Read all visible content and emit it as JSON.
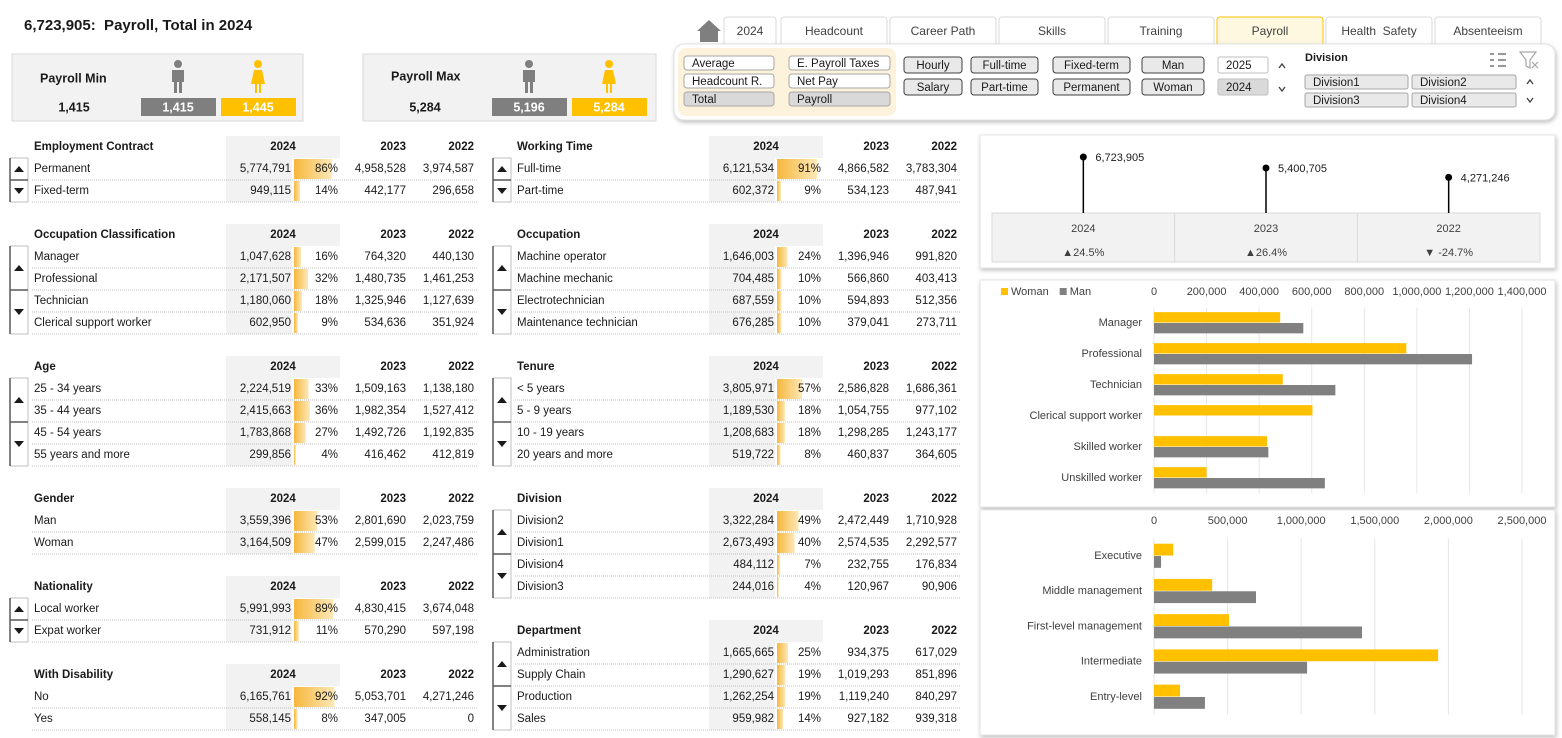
{
  "header": {
    "title": "6,723,905:  Payroll, Total in 2024"
  },
  "tabs": [
    "2024",
    "Headcount",
    "Career Path",
    "Skills",
    "Training",
    "Payroll",
    "Health  Safety",
    "Absenteeism"
  ],
  "active_tab": 5,
  "kpis": [
    {
      "title": "Payroll Min",
      "total": "1,415",
      "man": "1,415",
      "woman": "1,445"
    },
    {
      "title": "Payroll Max",
      "total": "5,284",
      "man": "5,196",
      "woman": "5,284"
    }
  ],
  "filters": {
    "measures": [
      {
        "label": "Average",
        "selected": false
      },
      {
        "label": "E. Payroll Taxes",
        "selected": false
      },
      {
        "label": "Headcount R.",
        "selected": false
      },
      {
        "label": "Net Pay",
        "selected": false
      },
      {
        "label": "Total",
        "selected": true
      },
      {
        "label": "Payroll",
        "selected": true
      }
    ],
    "buttons": [
      "Hourly",
      "Salary",
      "Full-time",
      "Part-time",
      "Fixed-term",
      "Permanent",
      "Man",
      "Woman"
    ],
    "years": [
      {
        "label": "2025",
        "selected": false
      },
      {
        "label": "2024",
        "selected": true
      }
    ],
    "division_title": "Division",
    "divisions": [
      "Division1",
      "Division2",
      "Division3",
      "Division4"
    ]
  },
  "left_tables": [
    {
      "title": "Employment Contract",
      "columns": [
        "2024",
        "2023",
        "2022"
      ],
      "scroll": true,
      "rows": [
        [
          "Permanent",
          "5,774,791",
          86,
          "86%",
          "4,958,528",
          "3,974,587"
        ],
        [
          "Fixed-term",
          "949,115",
          14,
          "14%",
          "442,177",
          "296,658"
        ]
      ]
    },
    {
      "title": "Occupation Classification",
      "columns": [
        "2024",
        "2023",
        "2022"
      ],
      "scroll": true,
      "rows": [
        [
          "Manager",
          "1,047,628",
          16,
          "16%",
          "764,320",
          "440,130"
        ],
        [
          "Professional",
          "2,171,507",
          32,
          "32%",
          "1,480,735",
          "1,461,253"
        ],
        [
          "Technician",
          "1,180,060",
          18,
          "18%",
          "1,325,946",
          "1,127,639"
        ],
        [
          "Clerical support worker",
          "602,950",
          9,
          "9%",
          "534,636",
          "351,924"
        ]
      ]
    },
    {
      "title": "Age",
      "columns": [
        "2024",
        "2023",
        "2022"
      ],
      "scroll": true,
      "rows": [
        [
          "25 - 34 years",
          "2,224,519",
          33,
          "33%",
          "1,509,163",
          "1,138,180"
        ],
        [
          "35 - 44 years",
          "2,415,663",
          36,
          "36%",
          "1,982,354",
          "1,527,412"
        ],
        [
          "45 - 54 years",
          "1,783,868",
          27,
          "27%",
          "1,492,726",
          "1,192,835"
        ],
        [
          "55 years and more",
          "299,856",
          4,
          "4%",
          "416,462",
          "412,819"
        ]
      ]
    },
    {
      "title": "Gender",
      "columns": [
        "2024",
        "2023",
        "2022"
      ],
      "scroll": false,
      "rows": [
        [
          "Man",
          "3,559,396",
          53,
          "53%",
          "2,801,690",
          "2,023,759"
        ],
        [
          "Woman",
          "3,164,509",
          47,
          "47%",
          "2,599,015",
          "2,247,486"
        ]
      ]
    },
    {
      "title": "Nationality",
      "columns": [
        "2024",
        "2023",
        "2022"
      ],
      "scroll": true,
      "rows": [
        [
          "Local worker",
          "5,991,993",
          89,
          "89%",
          "4,830,415",
          "3,674,048"
        ],
        [
          "Expat worker",
          "731,912",
          11,
          "11%",
          "570,290",
          "597,198"
        ]
      ]
    },
    {
      "title": "With Disability",
      "columns": [
        "2024",
        "2023",
        "2022"
      ],
      "scroll": false,
      "rows": [
        [
          "No",
          "6,165,761",
          92,
          "92%",
          "5,053,701",
          "4,271,246"
        ],
        [
          "Yes",
          "558,145",
          8,
          "8%",
          "347,005",
          "0"
        ]
      ]
    }
  ],
  "right_tables": [
    {
      "title": "Working Time",
      "columns": [
        "2024",
        "2023",
        "2022"
      ],
      "scroll": true,
      "rows": [
        [
          "Full-time",
          "6,121,534",
          91,
          "91%",
          "4,866,582",
          "3,783,304"
        ],
        [
          "Part-time",
          "602,372",
          9,
          "9%",
          "534,123",
          "487,941"
        ]
      ]
    },
    {
      "title": "Occupation",
      "columns": [
        "2024",
        "2023",
        "2022"
      ],
      "scroll": true,
      "rows": [
        [
          "Machine operator",
          "1,646,003",
          24,
          "24%",
          "1,396,946",
          "991,820"
        ],
        [
          "Machine mechanic",
          "704,485",
          10,
          "10%",
          "566,860",
          "403,413"
        ],
        [
          "Electrotechnician",
          "687,559",
          10,
          "10%",
          "594,893",
          "512,356"
        ],
        [
          "Maintenance technician",
          "676,285",
          10,
          "10%",
          "379,041",
          "273,711"
        ]
      ]
    },
    {
      "title": "Tenure",
      "columns": [
        "2024",
        "2023",
        "2022"
      ],
      "scroll": true,
      "rows": [
        [
          "< 5 years",
          "3,805,971",
          57,
          "57%",
          "2,586,828",
          "1,686,361"
        ],
        [
          "5 - 9 years",
          "1,189,530",
          18,
          "18%",
          "1,054,755",
          "977,102"
        ],
        [
          "10 - 19 years",
          "1,208,683",
          18,
          "18%",
          "1,298,285",
          "1,243,177"
        ],
        [
          "20 years and more",
          "519,722",
          8,
          "8%",
          "460,837",
          "364,605"
        ]
      ]
    },
    {
      "title": "Division",
      "columns": [
        "2024",
        "2023",
        "2022"
      ],
      "scroll": true,
      "rows": [
        [
          "Division2",
          "3,322,284",
          49,
          "49%",
          "2,472,449",
          "1,710,928"
        ],
        [
          "Division1",
          "2,673,493",
          40,
          "40%",
          "2,574,535",
          "2,292,577"
        ],
        [
          "Division4",
          "484,112",
          7,
          "7%",
          "232,755",
          "176,834"
        ],
        [
          "Division3",
          "244,016",
          4,
          "4%",
          "120,967",
          "90,906"
        ]
      ]
    },
    {
      "title": "Department",
      "columns": [
        "2024",
        "2023",
        "2022"
      ],
      "scroll": true,
      "rows": [
        [
          "Administration",
          "1,665,665",
          25,
          "25%",
          "934,375",
          "617,029"
        ],
        [
          "Supply Chain",
          "1,290,627",
          19,
          "19%",
          "1,019,293",
          "851,896"
        ],
        [
          "Production",
          "1,262,254",
          19,
          "19%",
          "1,119,240",
          "840,297"
        ],
        [
          "Sales",
          "959,982",
          14,
          "14%",
          "927,182",
          "939,318"
        ]
      ]
    }
  ],
  "chart_data": [
    {
      "type": "lollipop",
      "categories": [
        "2024",
        "2023",
        "2022"
      ],
      "values": [
        6723905,
        5400705,
        4271246
      ],
      "value_labels": [
        "6,723,905",
        "5,400,705",
        "4,271,246"
      ],
      "changes": [
        "▲24.5%",
        "▲26.4%",
        "▼ -24.7%"
      ],
      "ylim": [
        0,
        7500000
      ],
      "color": "#000000"
    },
    {
      "type": "barh",
      "categories": [
        "Manager",
        "Professional",
        "Technician",
        "Clerical support worker",
        "Skilled worker",
        "Unskilled worker"
      ],
      "series": [
        {
          "name": "Woman",
          "color": "#ffc000",
          "values": [
            480000,
            960000,
            490000,
            603000,
            430000,
            200000
          ]
        },
        {
          "name": "Man",
          "color": "#808080",
          "values": [
            568000,
            1210000,
            690000,
            0,
            435000,
            650000
          ]
        }
      ],
      "xlim": [
        0,
        1400000
      ],
      "xticks": [
        0,
        {
          "value": 200000,
          "label": "200,000"
        },
        {
          "value": 400000,
          "label": "400,000"
        },
        {
          "value": 600000,
          "label": "600,000"
        },
        {
          "value": 800000,
          "label": "800,000"
        },
        {
          "value": 1000000,
          "label": "1,000,000"
        },
        {
          "value": 1200000,
          "label": "1,200,000"
        },
        {
          "value": 1400000,
          "label": "1,400,000"
        }
      ],
      "grid": true,
      "legend": "top-left"
    },
    {
      "type": "barh",
      "categories": [
        "Executive",
        "Middle management",
        "First-level management",
        "Intermediate",
        "Entry-level"
      ],
      "series": [
        {
          "color": "#ffc000",
          "values": [
            130000,
            395000,
            510000,
            1930000,
            177000
          ]
        },
        {
          "color": "#808080",
          "values": [
            48000,
            693000,
            1413000,
            1040000,
            346000
          ]
        }
      ],
      "xlim": [
        0,
        2500000
      ],
      "xticks": [
        0,
        {
          "value": 500000,
          "label": "500,000"
        },
        {
          "value": 1000000,
          "label": "1,000,000"
        },
        {
          "value": 1500000,
          "label": "1,500,000"
        },
        {
          "value": 2000000,
          "label": "2,000,000"
        },
        {
          "value": 2500000,
          "label": "2,500,000"
        }
      ],
      "grid": true
    }
  ]
}
